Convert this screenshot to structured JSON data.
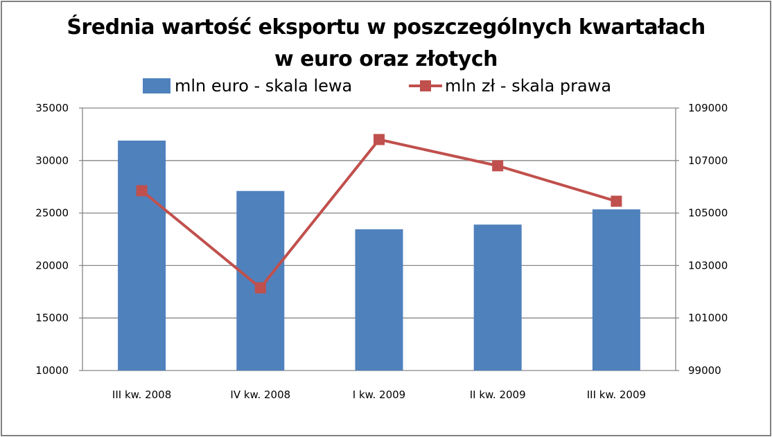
{
  "chart_data": {
    "type": "bar+line",
    "title": "Średnia wartość eksportu w poszczególnych kwartałach w euro oraz złotych",
    "title_lines": [
      "Średnia wartość eksportu w poszczególnych kwartałach",
      "w euro oraz złotych"
    ],
    "categories": [
      "III kw. 2008",
      "IV kw. 2008",
      "I kw. 2009",
      "II kw. 2009",
      "III kw. 2009"
    ],
    "series": [
      {
        "name": "mln euro - skala lewa",
        "type": "bar",
        "axis": "left",
        "color": "#4F81BD",
        "values": [
          31900,
          27100,
          23450,
          23900,
          25350
        ]
      },
      {
        "name": "mln zł - skala prawa",
        "type": "line",
        "marker": "square",
        "axis": "right",
        "color": "#C0504D",
        "values": [
          105850,
          102150,
          107800,
          106800,
          105450
        ]
      }
    ],
    "left_axis": {
      "min": 10000,
      "max": 35000,
      "step": 5000,
      "ticks": [
        "35000",
        "30000",
        "25000",
        "20000",
        "15000",
        "10000"
      ]
    },
    "right_axis": {
      "min": 99000,
      "max": 109000,
      "step": 2000,
      "ticks": [
        "109000",
        "107000",
        "105000",
        "103000",
        "101000",
        "99000"
      ]
    },
    "xlabel": "",
    "ylabel": "",
    "grid": true,
    "legend_position": "top"
  },
  "legend": {
    "bar_label": "mln euro - skala lewa",
    "line_label": "mln zł - skala prawa"
  },
  "colors": {
    "bar": "#4F81BD",
    "line": "#C0504D",
    "grid": "#868686",
    "frame": "#808080"
  }
}
